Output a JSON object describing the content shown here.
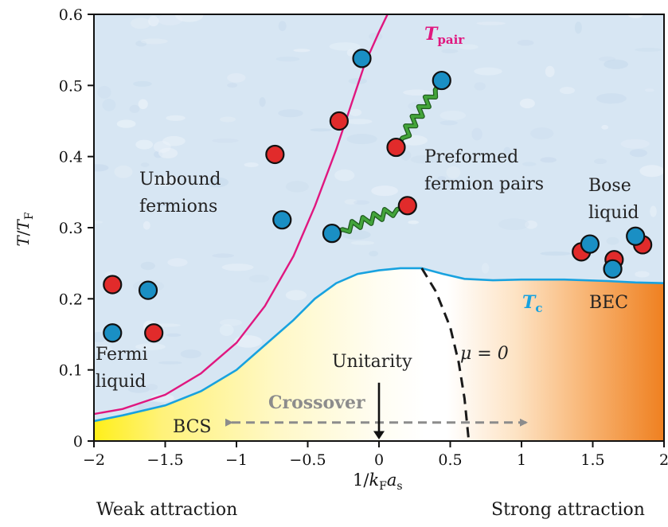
{
  "chart_data": {
    "type": "diagram",
    "xlabel": "1/k_F a_s",
    "ylabel": "T/T_F",
    "xlim": [
      -2,
      2
    ],
    "ylim": [
      0,
      0.6
    ],
    "xticks": [
      -2,
      -1.5,
      -1,
      -0.5,
      0,
      0.5,
      1,
      1.5,
      2
    ],
    "xtick_labels": [
      "−2",
      "−1.5",
      "−1",
      "−0.5",
      "0",
      "0.5",
      "1",
      "1.5",
      "2"
    ],
    "yticks": [
      0,
      0.1,
      0.2,
      0.3,
      0.4,
      0.5,
      0.6
    ],
    "ytick_labels": [
      "0",
      "0.1",
      "0.2",
      "0.3",
      "0.4",
      "0.5",
      "0.6"
    ],
    "tpair_curve": [
      [
        -2,
        0.038
      ],
      [
        -1.8,
        0.045
      ],
      [
        -1.5,
        0.065
      ],
      [
        -1.25,
        0.095
      ],
      [
        -1,
        0.138
      ],
      [
        -0.8,
        0.19
      ],
      [
        -0.6,
        0.26
      ],
      [
        -0.45,
        0.33
      ],
      [
        -0.3,
        0.41
      ],
      [
        -0.2,
        0.47
      ],
      [
        -0.1,
        0.53
      ],
      [
        0,
        0.575
      ],
      [
        0.06,
        0.6
      ]
    ],
    "tc_curve": [
      [
        -2,
        0.028
      ],
      [
        -1.8,
        0.036
      ],
      [
        -1.5,
        0.05
      ],
      [
        -1.25,
        0.07
      ],
      [
        -1,
        0.1
      ],
      [
        -0.8,
        0.135
      ],
      [
        -0.6,
        0.17
      ],
      [
        -0.45,
        0.2
      ],
      [
        -0.3,
        0.222
      ],
      [
        -0.15,
        0.235
      ],
      [
        0,
        0.24
      ],
      [
        0.15,
        0.243
      ],
      [
        0.3,
        0.243
      ],
      [
        0.45,
        0.235
      ],
      [
        0.6,
        0.228
      ],
      [
        0.8,
        0.226
      ],
      [
        1,
        0.227
      ],
      [
        1.3,
        0.227
      ],
      [
        1.6,
        0.225
      ],
      [
        1.8,
        0.223
      ],
      [
        2,
        0.222
      ]
    ],
    "mu_zero_curve": [
      [
        0.3,
        0.243
      ],
      [
        0.4,
        0.21
      ],
      [
        0.5,
        0.16
      ],
      [
        0.56,
        0.11
      ],
      [
        0.6,
        0.06
      ],
      [
        0.63,
        0
      ]
    ],
    "particles": [
      {
        "x": -1.87,
        "y": 0.22,
        "color": "red"
      },
      {
        "x": -1.62,
        "y": 0.212,
        "color": "blue"
      },
      {
        "x": -1.87,
        "y": 0.152,
        "color": "blue"
      },
      {
        "x": -1.58,
        "y": 0.152,
        "color": "red"
      },
      {
        "x": -0.73,
        "y": 0.403,
        "color": "red"
      },
      {
        "x": -0.68,
        "y": 0.311,
        "color": "blue"
      },
      {
        "x": -0.28,
        "y": 0.45,
        "color": "red"
      },
      {
        "x": -0.12,
        "y": 0.538,
        "color": "blue"
      },
      {
        "x": 1.42,
        "y": 0.266,
        "color": "red"
      },
      {
        "x": 1.48,
        "y": 0.277,
        "color": "blue"
      },
      {
        "x": 1.65,
        "y": 0.255,
        "color": "red"
      },
      {
        "x": 1.64,
        "y": 0.242,
        "color": "blue"
      },
      {
        "x": 1.85,
        "y": 0.276,
        "color": "red"
      },
      {
        "x": 1.8,
        "y": 0.288,
        "color": "blue"
      }
    ],
    "pairs": [
      {
        "x1": 0.12,
        "y1": 0.413,
        "c1": "red",
        "x2": 0.44,
        "y2": 0.507,
        "c2": "blue"
      },
      {
        "x1": -0.33,
        "y1": 0.292,
        "c1": "blue",
        "x2": 0.2,
        "y2": 0.331,
        "c2": "red"
      }
    ],
    "crossover_range": [
      -1,
      1
    ],
    "unitarity_x": 0,
    "colors": {
      "tpair": "#e0177f",
      "tc": "#18a2df",
      "particle_red": "#e12b2b",
      "particle_blue": "#1a8fc4",
      "bond": "#43a43a",
      "crossover": "#8c8c8c",
      "bcs_yellow": "#ffef1a",
      "bec_orange": "#ef8020",
      "background": "#d7e6f3"
    }
  },
  "labels": {
    "tpair_main": "T",
    "tpair_sub": "pair",
    "tc_main": "T",
    "tc_sub": "c",
    "unbound_1": "Unbound",
    "unbound_2": "fermions",
    "preformed_1": "Preformed",
    "preformed_2": "fermion pairs",
    "bose_1": "Bose",
    "bose_2": "liquid",
    "fermi_1": "Fermi",
    "fermi_2": "liquid",
    "bec": "BEC",
    "bcs": "BCS",
    "crossover": "Crossover",
    "unitarity": "Unitarity",
    "mu": "μ = 0",
    "ylabel_main": "T",
    "ylabel_slash": "/",
    "ylabel_den": "T",
    "ylabel_sub": "F",
    "xlabel_pre": "1/",
    "xlabel_k": "k",
    "xlabel_ksub": "F",
    "xlabel_a": "a",
    "xlabel_asub": "s"
  },
  "footer": {
    "weak": "Weak attraction",
    "strong": "Strong attraction"
  }
}
